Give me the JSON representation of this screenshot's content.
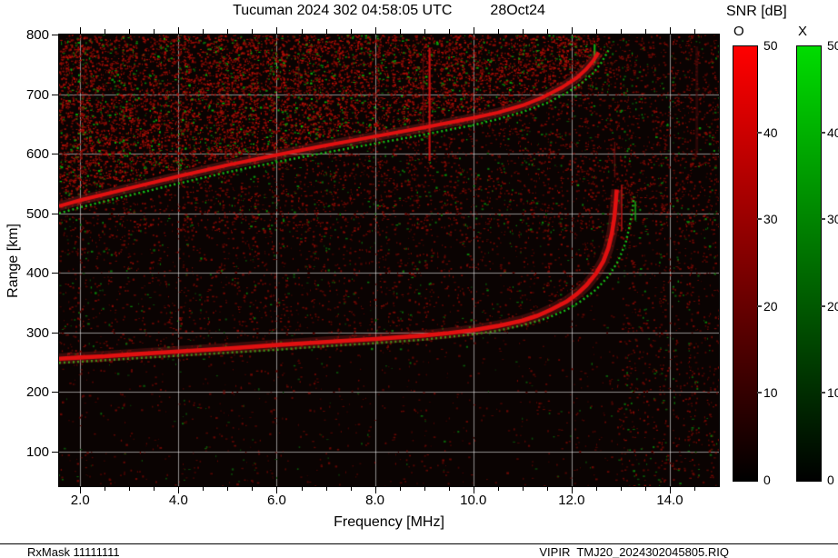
{
  "header": {
    "title_left": "Tucuman 2024 302 04:58:05 UTC",
    "title_right": "28Oct24"
  },
  "footer": {
    "left": "RxMask 11111111",
    "right": "VIPIR  TMJ20_2024302045805.RIQ"
  },
  "colorbar": {
    "title": "SNR [dB]",
    "min_db": 0,
    "max_db": 50,
    "tick_labels": [
      "0",
      "10",
      "20",
      "30",
      "40",
      "50"
    ],
    "tick_values": [
      0,
      10,
      20,
      30,
      40,
      50
    ],
    "columns": [
      {
        "label": "O",
        "scale_bottom": "#000000",
        "scale_top": "#ff0000"
      },
      {
        "label": "X",
        "scale_bottom": "#000000",
        "scale_top": "#00dc00"
      }
    ]
  },
  "chart_data": {
    "type": "heatmap",
    "title": "Tucuman 2024 302 04:58:05 UTC   28Oct24",
    "xlabel": "Frequency [MHz]",
    "ylabel": "Range [km]",
    "xlim": [
      1.57,
      15.0
    ],
    "ylim": [
      42,
      800
    ],
    "xticks": [
      2,
      4,
      6,
      8,
      10,
      12,
      14
    ],
    "xtick_labels": [
      "2.0",
      "4.0",
      "6.0",
      "8.0",
      "10.0",
      "12.0",
      "14.0"
    ],
    "yticks": [
      100,
      200,
      300,
      400,
      500,
      600,
      700,
      800
    ],
    "ytick_labels": [
      "100",
      "200",
      "300",
      "400",
      "500",
      "600",
      "700",
      "800"
    ],
    "grid": true,
    "background": "#0a0302",
    "grid_color": "rgba(235,235,235,0.6)",
    "legend": {
      "title": "SNR [dB]",
      "range_db": [
        0,
        50
      ],
      "o_scale": [
        "#000000",
        "#ff0000"
      ],
      "x_scale": [
        "#000000",
        "#00dc00"
      ]
    },
    "series": [
      {
        "name": "X-mode second hop",
        "mode": "X",
        "hop": 2,
        "color": "#16c016",
        "width": 2.4,
        "dash": [
          2,
          3
        ],
        "glow": null,
        "points": [
          [
            1.57,
            500
          ],
          [
            2.0,
            510
          ],
          [
            3.0,
            530
          ],
          [
            4.0,
            550
          ],
          [
            5.0,
            569
          ],
          [
            6.0,
            586
          ],
          [
            7.0,
            602
          ],
          [
            8.0,
            617
          ],
          [
            9.0,
            632
          ],
          [
            10.0,
            648
          ],
          [
            10.5,
            658
          ],
          [
            11.0,
            670
          ],
          [
            11.5,
            685
          ],
          [
            11.9,
            702
          ],
          [
            12.2,
            718
          ],
          [
            12.45,
            736
          ],
          [
            12.6,
            752
          ],
          [
            12.7,
            766
          ],
          [
            12.78,
            778
          ]
        ]
      },
      {
        "name": "O-mode second hop",
        "mode": "O",
        "hop": 2,
        "color": "#e01010",
        "width": 4.0,
        "dash": null,
        "glow": "#c03030",
        "points": [
          [
            1.57,
            512
          ],
          [
            2.0,
            522
          ],
          [
            2.5,
            532
          ],
          [
            3.0,
            542
          ],
          [
            4.0,
            562
          ],
          [
            5.0,
            581
          ],
          [
            6.0,
            598
          ],
          [
            7.0,
            614
          ],
          [
            8.0,
            629
          ],
          [
            9.0,
            644
          ],
          [
            10.0,
            660
          ],
          [
            10.5,
            669
          ],
          [
            11.0,
            681
          ],
          [
            11.4,
            694
          ],
          [
            11.8,
            711
          ],
          [
            12.1,
            727
          ],
          [
            12.3,
            742
          ],
          [
            12.45,
            757
          ],
          [
            12.55,
            770
          ]
        ]
      },
      {
        "name": "X-mode first hop",
        "mode": "X",
        "hop": 1,
        "color": "#16c016",
        "width": 2.4,
        "dash": [
          2,
          3
        ],
        "glow": null,
        "points": [
          [
            1.57,
            249
          ],
          [
            2.0,
            251
          ],
          [
            3.0,
            256
          ],
          [
            4.0,
            261
          ],
          [
            5.0,
            266
          ],
          [
            6.0,
            271
          ],
          [
            7.0,
            277
          ],
          [
            8.0,
            282
          ],
          [
            9.0,
            288
          ],
          [
            10.0,
            297
          ],
          [
            10.5,
            303
          ],
          [
            11.0,
            312
          ],
          [
            11.5,
            324
          ],
          [
            11.9,
            338
          ],
          [
            12.2,
            353
          ],
          [
            12.5,
            372
          ],
          [
            12.75,
            394
          ],
          [
            12.95,
            420
          ],
          [
            13.1,
            450
          ],
          [
            13.18,
            478
          ],
          [
            13.24,
            505
          ],
          [
            13.27,
            528
          ]
        ]
      },
      {
        "name": "O-mode first hop",
        "mode": "O",
        "hop": 1,
        "color": "#e01010",
        "width": 4.6,
        "dash": null,
        "glow": "#b02020",
        "points": [
          [
            1.57,
            256
          ],
          [
            2.0,
            258
          ],
          [
            2.5,
            260
          ],
          [
            3.0,
            263
          ],
          [
            4.0,
            268
          ],
          [
            5.0,
            273
          ],
          [
            6.0,
            279
          ],
          [
            7.0,
            284
          ],
          [
            8.0,
            289
          ],
          [
            9.0,
            295
          ],
          [
            9.5,
            299
          ],
          [
            10.0,
            304
          ],
          [
            10.5,
            311
          ],
          [
            11.0,
            320
          ],
          [
            11.3,
            328
          ],
          [
            11.6,
            339
          ],
          [
            11.9,
            352
          ],
          [
            12.1,
            364
          ],
          [
            12.3,
            379
          ],
          [
            12.5,
            399
          ],
          [
            12.65,
            420
          ],
          [
            12.75,
            442
          ],
          [
            12.82,
            466
          ],
          [
            12.87,
            492
          ],
          [
            12.9,
            518
          ],
          [
            12.92,
            540
          ]
        ]
      }
    ],
    "rfi_streaks": [
      {
        "f": 9.11,
        "r_from": 588,
        "r_to": 778,
        "color": "#d01010",
        "width": 2.2,
        "alpha": 0.95
      },
      {
        "f": 8.98,
        "r_from": 640,
        "r_to": 770,
        "color": "#7a0f0f",
        "width": 1.5,
        "alpha": 0.6
      },
      {
        "f": 12.47,
        "r_from": 752,
        "r_to": 784,
        "color": "#12b412",
        "width": 2.2,
        "alpha": 0.95
      },
      {
        "f": 13.02,
        "r_from": 470,
        "r_to": 548,
        "color": "#b01212",
        "width": 2.0,
        "alpha": 0.8
      },
      {
        "f": 13.3,
        "r_from": 488,
        "r_to": 520,
        "color": "#15a015",
        "width": 2.0,
        "alpha": 0.8
      },
      {
        "f": 12.88,
        "r_from": 560,
        "r_to": 620,
        "color": "#8a1010",
        "width": 1.6,
        "alpha": 0.6
      },
      {
        "f": 14.55,
        "r_from": 600,
        "r_to": 780,
        "color": "#4a0c0c",
        "width": 3.0,
        "alpha": 0.5
      },
      {
        "f": 6.45,
        "r_from": 700,
        "r_to": 760,
        "color": "#5a0d0d",
        "width": 1.5,
        "alpha": 0.5
      }
    ],
    "noise": {
      "seed": 20241028,
      "points": 52000,
      "green_fraction": 0.12
    }
  }
}
